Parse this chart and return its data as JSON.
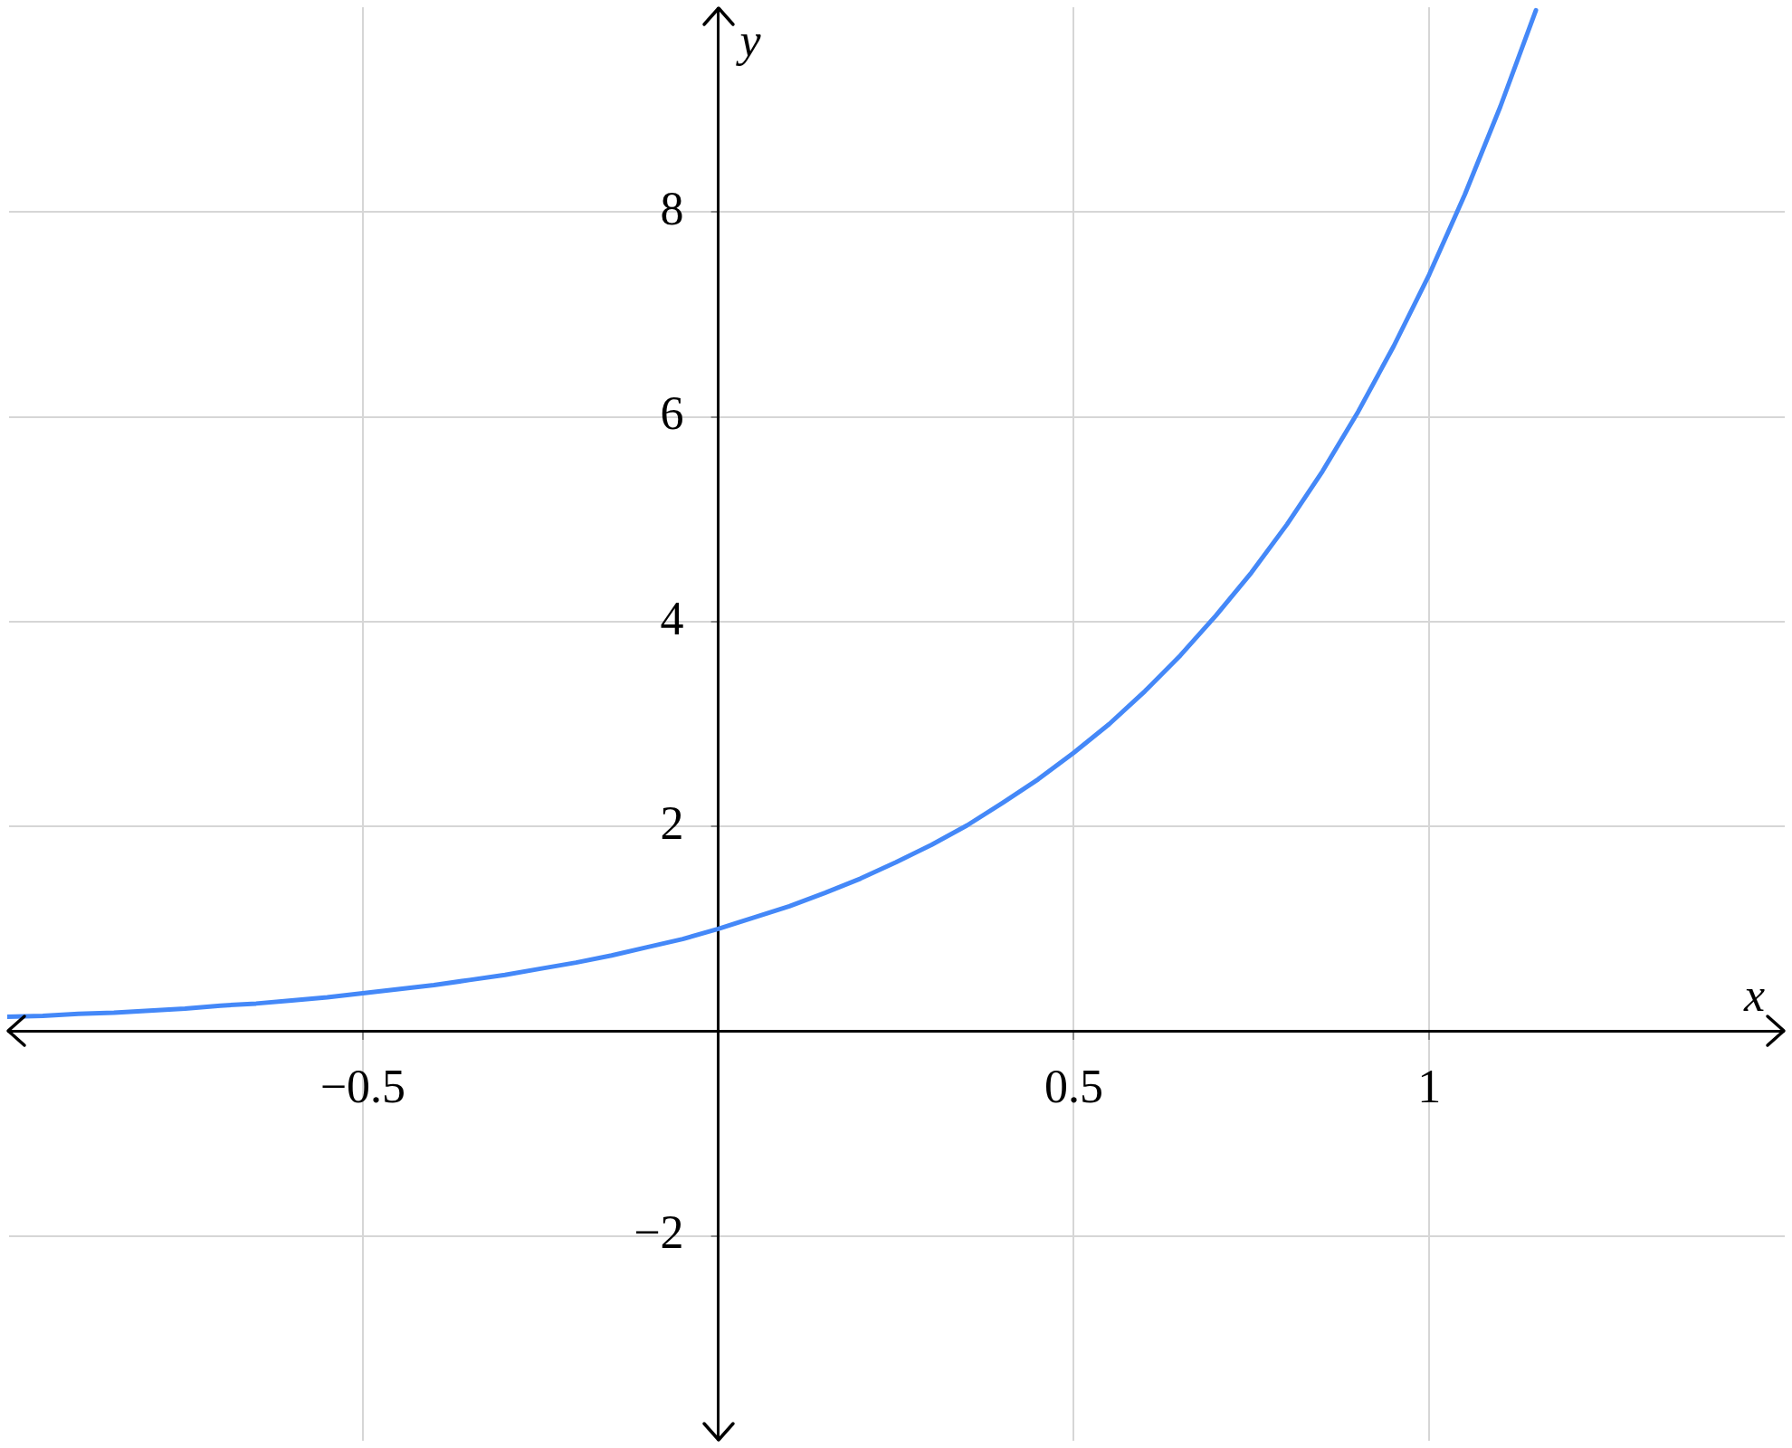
{
  "chart_data": {
    "type": "line",
    "xlabel": "x",
    "ylabel": "y",
    "x": [
      -1,
      -0.95,
      -0.9,
      -0.85,
      -0.8,
      -0.75,
      -0.7,
      -0.65,
      -0.6,
      -0.55,
      -0.5,
      -0.45,
      -0.4,
      -0.35,
      -0.3,
      -0.25,
      -0.2,
      -0.15,
      -0.1,
      -0.05,
      0,
      0.05,
      0.1,
      0.15,
      0.2,
      0.25,
      0.3,
      0.35,
      0.4,
      0.45,
      0.5,
      0.55,
      0.6,
      0.65,
      0.7,
      0.75,
      0.8,
      0.85,
      0.9,
      0.95,
      1,
      1.05,
      1.1,
      1.15
    ],
    "series": [
      {
        "color": "#4488f8",
        "values": [
          0.14,
          0.15,
          0.17,
          0.18,
          0.2,
          0.22,
          0.25,
          0.27,
          0.3,
          0.33,
          0.37,
          0.41,
          0.45,
          0.5,
          0.55,
          0.61,
          0.67,
          0.74,
          0.82,
          0.9,
          1,
          1.11,
          1.22,
          1.35,
          1.49,
          1.65,
          1.82,
          2.01,
          2.23,
          2.46,
          2.72,
          3,
          3.32,
          3.67,
          4.06,
          4.48,
          4.95,
          5.47,
          6.05,
          6.69,
          7.39,
          8.17,
          9.03,
          9.97
        ]
      }
    ],
    "xlim": [
      -1,
      1.5
    ],
    "ylim": [
      -4,
      10
    ],
    "xticks": [
      {
        "value": -0.5,
        "label": "−0.5"
      },
      0.5,
      1
    ],
    "yticks": [
      {
        "value": -2,
        "label": "−2"
      },
      2,
      4,
      6,
      8
    ],
    "grid": true
  }
}
